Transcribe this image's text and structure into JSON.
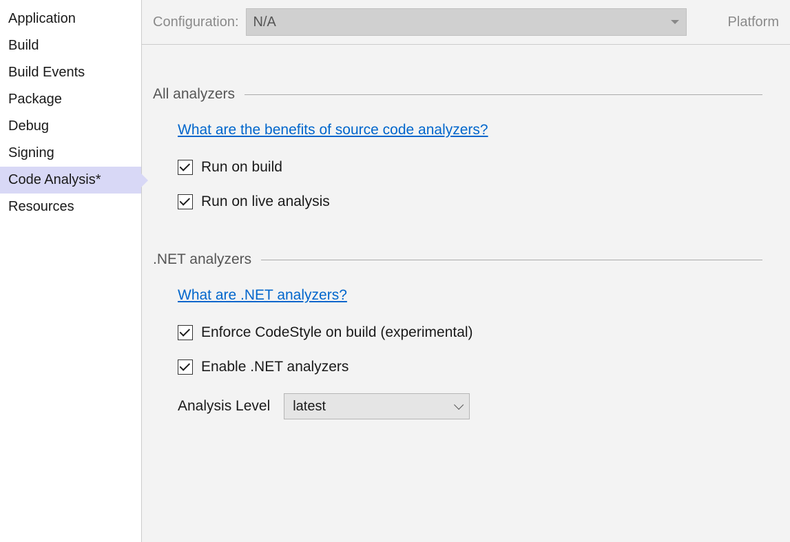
{
  "sidebar": {
    "items": [
      {
        "label": "Application",
        "selected": false
      },
      {
        "label": "Build",
        "selected": false
      },
      {
        "label": "Build Events",
        "selected": false
      },
      {
        "label": "Package",
        "selected": false
      },
      {
        "label": "Debug",
        "selected": false
      },
      {
        "label": "Signing",
        "selected": false
      },
      {
        "label": "Code Analysis*",
        "selected": true
      },
      {
        "label": "Resources",
        "selected": false
      }
    ]
  },
  "topbar": {
    "configuration_label": "Configuration:",
    "configuration_value": "N/A",
    "platform_label": "Platform"
  },
  "sections": {
    "all_analyzers": {
      "title": "All analyzers",
      "link": "What are the benefits of source code analyzers?",
      "checkboxes": [
        {
          "label": "Run on build",
          "checked": true
        },
        {
          "label": "Run on live analysis",
          "checked": true
        }
      ]
    },
    "net_analyzers": {
      "title": ".NET analyzers",
      "link": "What are .NET analyzers?",
      "checkboxes": [
        {
          "label": "Enforce CodeStyle on build (experimental)",
          "checked": true
        },
        {
          "label": "Enable .NET analyzers",
          "checked": true
        }
      ],
      "analysis_level_label": "Analysis Level",
      "analysis_level_value": "latest"
    }
  },
  "colors": {
    "sidebar_selected_bg": "#d8d8f6",
    "main_bg": "#f3f3f3",
    "link_color": "#0066cc",
    "disabled_text": "#8a8a8a",
    "rule_color": "#aaaaaa",
    "config_select_bg": "#d0d0d0",
    "dropdown_bg": "#e5e5e5"
  }
}
